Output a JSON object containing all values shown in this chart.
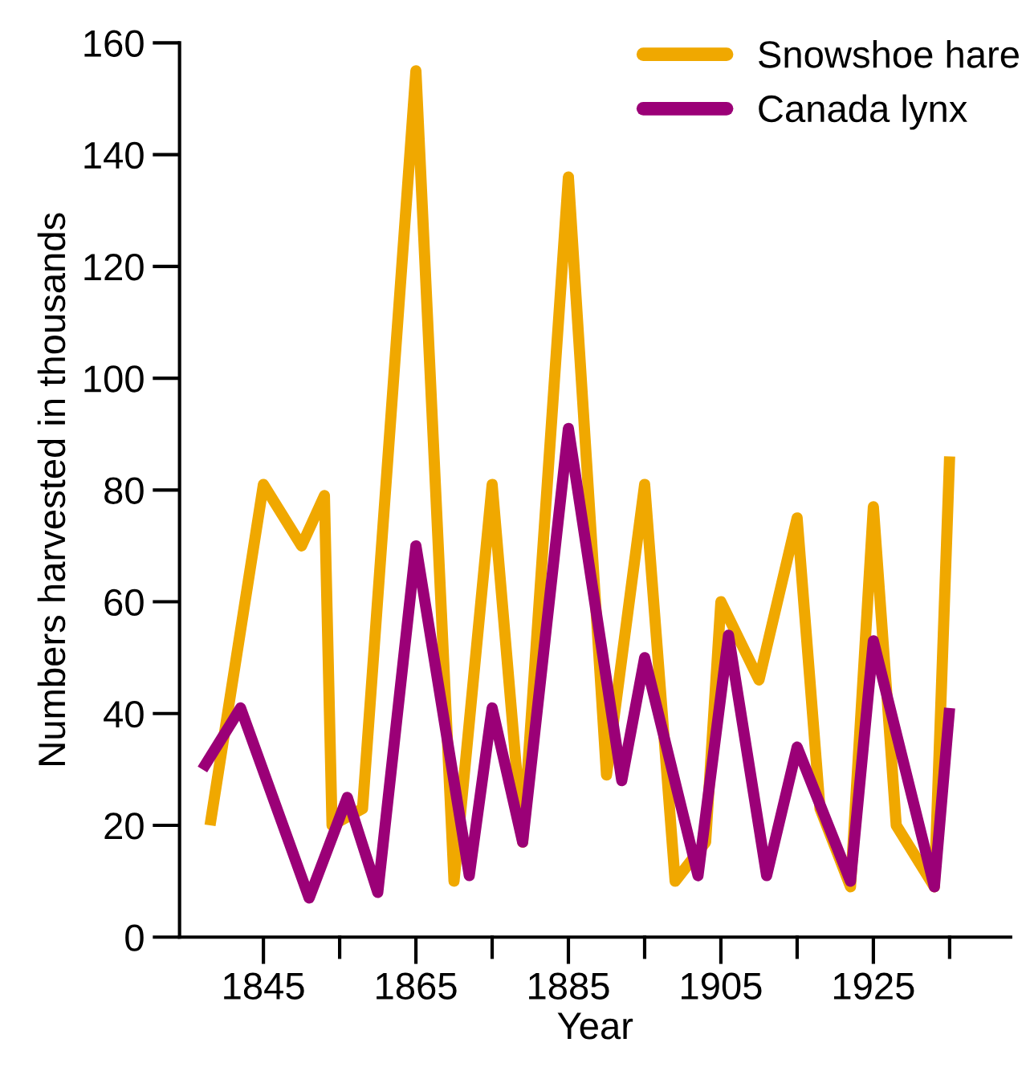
{
  "chart_data": {
    "type": "line",
    "xlabel": "Year",
    "ylabel": "Numbers harvested in thousands",
    "xlim": [
      1834,
      1943
    ],
    "xticks": [
      {
        "value": 1845,
        "label": "1845"
      },
      {
        "value": 1855,
        "label": null
      },
      {
        "value": 1865,
        "label": "1865"
      },
      {
        "value": 1875,
        "label": null
      },
      {
        "value": 1885,
        "label": "1885"
      },
      {
        "value": 1895,
        "label": null
      },
      {
        "value": 1905,
        "label": "1905"
      },
      {
        "value": 1915,
        "label": null
      },
      {
        "value": 1925,
        "label": "1925"
      },
      {
        "value": 1935,
        "label": null
      }
    ],
    "ylim": [
      0,
      160
    ],
    "yticks": [
      0,
      20,
      40,
      60,
      80,
      100,
      120,
      140,
      160
    ],
    "grid": false,
    "legend": "top right",
    "marker": "none",
    "line_style": "solid",
    "series": [
      {
        "name": "Snowshoe hare",
        "color": "#f0a800",
        "x": [
          1838,
          1845,
          1850,
          1853,
          1854,
          1858,
          1865,
          1870,
          1875,
          1879,
          1885,
          1890,
          1895,
          1899,
          1903,
          1905,
          1910,
          1915,
          1918,
          1922,
          1925,
          1928,
          1933,
          1935
        ],
        "values": [
          20,
          81,
          70,
          79,
          20,
          23,
          155,
          10,
          81,
          17,
          136,
          29,
          81,
          10,
          17,
          60,
          46,
          75,
          23,
          9,
          77,
          20,
          9,
          86
        ]
      },
      {
        "name": "Canada lynx",
        "color": "#9b0077",
        "x": [
          1837,
          1842,
          1851,
          1856,
          1860,
          1865,
          1872,
          1875,
          1879,
          1885,
          1892,
          1895,
          1902,
          1906,
          1911,
          1915,
          1922,
          1925,
          1933,
          1935
        ],
        "values": [
          30,
          41,
          7,
          25,
          8,
          70,
          11,
          41,
          17,
          91,
          28,
          50,
          11,
          54,
          11,
          34,
          10,
          53,
          9,
          41
        ]
      }
    ]
  }
}
